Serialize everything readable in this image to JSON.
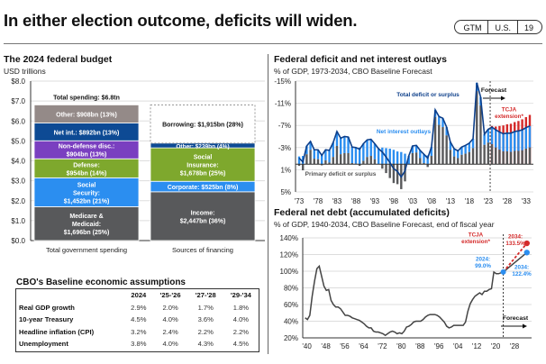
{
  "header": {
    "title": "In either election outcome, deficits will widen.",
    "badge": [
      "GTM",
      "U.S.",
      "19"
    ]
  },
  "budget": {
    "title": "The 2024 federal budget",
    "subtitle": "USD trillions",
    "total_label": "Total spending: $6.8tn",
    "chart_data": {
      "type": "bar",
      "stacked": true,
      "ylim": [
        0,
        8
      ],
      "yticks": [
        "$0.0",
        "$1.0",
        "$2.0",
        "$3.0",
        "$4.0",
        "$5.0",
        "$6.0",
        "$7.0",
        "$8.0"
      ],
      "categories": [
        "Total government spending",
        "Sources of financing"
      ],
      "spending": [
        {
          "name": "Medicare & Medicaid",
          "label": "Medicare &|Medicaid:|$1,696bn (25%)",
          "value": 1.696,
          "color": "#58595b"
        },
        {
          "name": "Social Security",
          "label": "Social|Security:|$1,452bn (21%)",
          "value": 1.452,
          "color": "#2b8ef0"
        },
        {
          "name": "Defense",
          "label": "Defense:|$954bn (14%)",
          "value": 0.954,
          "color": "#7ea82d"
        },
        {
          "name": "Non-defense disc.",
          "label": "Non-defense disc.:|$904bn (13%)",
          "value": 0.904,
          "color": "#7a3fc0"
        },
        {
          "name": "Net int.",
          "label": "Net int.: $892bn (13%)",
          "value": 0.892,
          "color": "#0d4a94"
        },
        {
          "name": "Other",
          "label": "Other: $908bn (13%)",
          "value": 0.908,
          "color": "#948a88"
        }
      ],
      "financing": [
        {
          "name": "Income",
          "label": "Income:|$2,447bn (36%)",
          "value": 2.447,
          "color": "#58595b"
        },
        {
          "name": "Corporate",
          "label": "Corporate: $525bn (8%)",
          "value": 0.525,
          "color": "#2b8ef0"
        },
        {
          "name": "Social Insurance",
          "label": "Social|Insurance:|$1,678bn (25%)",
          "value": 1.678,
          "color": "#7ea82d"
        },
        {
          "name": "Other",
          "label": "Other: $239bn (4%)",
          "value": 0.239,
          "color": "#0d4a94"
        },
        {
          "name": "Borrowing",
          "label": "Borrowing: $1,915bn (28%)",
          "value": 1.915,
          "color": "none"
        }
      ]
    }
  },
  "assumptions": {
    "title": "CBO's Baseline economic assumptions",
    "columns": [
      "",
      "2024",
      "'25-'26",
      "'27-'28",
      "'29-'34"
    ],
    "rows": [
      [
        "Real GDP growth",
        "2.9%",
        "2.0%",
        "1.7%",
        "1.8%"
      ],
      [
        "10-year Treasury",
        "4.5%",
        "4.0%",
        "3.6%",
        "4.0%"
      ],
      [
        "Headline inflation (CPI)",
        "3.2%",
        "2.4%",
        "2.2%",
        "2.2%"
      ],
      [
        "Unemployment",
        "3.8%",
        "4.0%",
        "4.3%",
        "4.5%"
      ]
    ]
  },
  "deficit": {
    "title": "Federal deficit and net interest outlays",
    "subtitle": "% of GDP, 1973-2034, CBO Baseline Forecast",
    "labels": {
      "total": "Total deficit or surplus",
      "interest": "Net interest outlays",
      "primary": "Primary deficit or surplus",
      "forecast": "Forecast",
      "tcja": "TCJA|extension*"
    },
    "chart_data": {
      "type": "bar",
      "title": "Federal deficit and net interest outlays",
      "ylim": [
        -15,
        5
      ],
      "yticks": [
        "-15%",
        "-11%",
        "-7%",
        "-3%",
        "1%",
        "5%"
      ],
      "ytick_values": [
        -15,
        -11,
        -7,
        -3,
        1,
        5
      ],
      "xticks": [
        "'73",
        "'78",
        "'83",
        "'88",
        "'93",
        "'98",
        "'03",
        "'08",
        "'13",
        "'18",
        "'23",
        "'28",
        "'33"
      ],
      "forecast_start": 2024,
      "years": [
        1973,
        1974,
        1975,
        1976,
        1977,
        1978,
        1979,
        1980,
        1981,
        1982,
        1983,
        1984,
        1985,
        1986,
        1987,
        1988,
        1989,
        1990,
        1991,
        1992,
        1993,
        1994,
        1995,
        1996,
        1997,
        1998,
        1999,
        2000,
        2001,
        2002,
        2003,
        2004,
        2005,
        2006,
        2007,
        2008,
        2009,
        2010,
        2011,
        2012,
        2013,
        2014,
        2015,
        2016,
        2017,
        2018,
        2019,
        2020,
        2021,
        2022,
        2023,
        2024,
        2025,
        2026,
        2027,
        2028,
        2029,
        2030,
        2031,
        2032,
        2033,
        2034
      ],
      "series": [
        {
          "name": "Total deficit or surplus",
          "color": "#0d3f8a",
          "values": [
            -1.1,
            -0.4,
            -3.3,
            -4.1,
            -2.6,
            -2.6,
            -1.6,
            -2.6,
            -2.5,
            -3.9,
            -5.9,
            -4.7,
            -5.0,
            -4.9,
            -3.1,
            -3.0,
            -2.7,
            -3.7,
            -4.4,
            -4.5,
            -3.7,
            -2.8,
            -2.2,
            -1.3,
            -0.3,
            0.8,
            1.3,
            2.3,
            1.2,
            -1.5,
            -3.3,
            -3.4,
            -2.5,
            -1.8,
            -1.1,
            -3.1,
            -9.8,
            -8.6,
            -8.3,
            -6.7,
            -4.0,
            -2.8,
            -2.4,
            -3.1,
            -3.4,
            -3.8,
            -4.6,
            -14.7,
            -12.1,
            -5.4,
            -6.3,
            -6.7,
            -6.2,
            -5.8,
            -5.5,
            -5.6,
            -5.6,
            -5.9,
            -6.0,
            -6.2,
            -6.6,
            -6.9
          ]
        },
        {
          "name": "Net interest outlays",
          "color": "#2b8ef0",
          "values": [
            1.4,
            1.5,
            1.5,
            1.5,
            1.6,
            1.7,
            1.8,
            1.9,
            2.2,
            2.6,
            2.6,
            2.9,
            3.0,
            2.9,
            2.9,
            2.9,
            3.0,
            3.1,
            3.1,
            3.0,
            2.8,
            2.8,
            3.0,
            2.9,
            2.8,
            2.6,
            2.3,
            2.2,
            1.9,
            1.5,
            1.3,
            1.3,
            1.4,
            1.6,
            1.6,
            1.6,
            1.3,
            1.5,
            1.6,
            1.5,
            1.4,
            1.4,
            1.3,
            1.4,
            1.5,
            1.6,
            1.7,
            1.5,
            1.5,
            1.9,
            2.4,
            3.1,
            3.2,
            3.2,
            3.2,
            3.3,
            3.4,
            3.5,
            3.6,
            3.7,
            3.8,
            3.9
          ]
        },
        {
          "name": "Primary deficit or surplus",
          "color": "#58595b",
          "values": [
            0.3,
            1.1,
            -1.8,
            -2.6,
            -1.0,
            -0.9,
            0.2,
            -0.7,
            -0.3,
            -1.3,
            -3.3,
            -1.8,
            -2.0,
            -2.0,
            -0.2,
            -0.1,
            0.3,
            -0.6,
            -1.3,
            -1.5,
            -0.9,
            0.0,
            0.8,
            1.6,
            2.5,
            3.4,
            3.6,
            4.5,
            3.1,
            0.0,
            -2.0,
            -2.1,
            -1.1,
            -0.2,
            0.5,
            -1.5,
            -8.5,
            -7.1,
            -6.7,
            -5.2,
            -2.6,
            -1.4,
            -1.1,
            -1.7,
            -1.9,
            -2.2,
            -2.9,
            -13.2,
            -10.6,
            -3.5,
            -3.9,
            -3.6,
            -3.0,
            -2.6,
            -2.3,
            -2.3,
            -2.2,
            -2.4,
            -2.4,
            -2.5,
            -2.8,
            -3.0
          ]
        },
        {
          "name": "TCJA extension*",
          "color": "#d42a2a",
          "values_from_2024": [
            -6.9,
            -6.8,
            -6.9,
            -7.0,
            -7.2,
            -7.3,
            -7.6,
            -7.8,
            -8.1,
            -8.5,
            -8.9
          ]
        }
      ]
    }
  },
  "debt": {
    "title": "Federal net debt (accumulated deficits)",
    "subtitle": "% of GDP, 1940-2034, CBO Baseline Forecast, end of fiscal year",
    "labels": {
      "tcja": "TCJA|extension*",
      "tcja_2034": "2034:|133.5%",
      "base_2024": "2024:|99.0%",
      "base_2034": "2034:|122.4%",
      "forecast": "Forecast"
    },
    "chart_data": {
      "type": "line",
      "title": "Federal net debt (accumulated deficits)",
      "ylim": [
        20,
        140
      ],
      "yticks": [
        "20%",
        "40%",
        "60%",
        "80%",
        "100%",
        "120%",
        "140%"
      ],
      "ytick_values": [
        20,
        40,
        60,
        80,
        100,
        120,
        140
      ],
      "xticks": [
        "'40",
        "'48",
        "'56",
        "'64",
        "'72",
        "'80",
        "'88",
        "'96",
        "'04",
        "'12",
        "'20",
        "'28"
      ],
      "xtick_values": [
        1940,
        1948,
        1956,
        1964,
        1972,
        1980,
        1988,
        1996,
        2004,
        2012,
        2020,
        2028
      ],
      "xlim": [
        1939,
        2036
      ],
      "forecast_start": 2024,
      "series": [
        {
          "name": "Historical net debt",
          "color": "#444444",
          "x": [
            1940,
            1941,
            1942,
            1943,
            1944,
            1945,
            1946,
            1947,
            1948,
            1949,
            1950,
            1951,
            1952,
            1953,
            1954,
            1955,
            1956,
            1957,
            1958,
            1959,
            1960,
            1961,
            1962,
            1963,
            1964,
            1965,
            1966,
            1967,
            1968,
            1969,
            1970,
            1971,
            1972,
            1973,
            1974,
            1975,
            1976,
            1977,
            1978,
            1979,
            1980,
            1981,
            1982,
            1983,
            1984,
            1985,
            1986,
            1987,
            1988,
            1989,
            1990,
            1991,
            1992,
            1993,
            1994,
            1995,
            1996,
            1997,
            1998,
            1999,
            2000,
            2001,
            2002,
            2003,
            2004,
            2005,
            2006,
            2007,
            2008,
            2009,
            2010,
            2011,
            2012,
            2013,
            2014,
            2015,
            2016,
            2017,
            2018,
            2019,
            2020,
            2021,
            2022,
            2023,
            2024
          ],
          "y": [
            44,
            42,
            47,
            70,
            88,
            103,
            106,
            94,
            82,
            77,
            78,
            65,
            60,
            57,
            57,
            55,
            51,
            47,
            47,
            46,
            44,
            43,
            42,
            41,
            39,
            37,
            34,
            32,
            32,
            28,
            27,
            27,
            26,
            25,
            23,
            25,
            27,
            28,
            27,
            25,
            26,
            25,
            28,
            33,
            34,
            36,
            39,
            40,
            40,
            40,
            42,
            45,
            47,
            48,
            48,
            48,
            47,
            45,
            42,
            39,
            34,
            32,
            33,
            35,
            35,
            35,
            35,
            35,
            39,
            52,
            61,
            66,
            70,
            72,
            74,
            72,
            76,
            76,
            78,
            79,
            99,
            97,
            97,
            98,
            99
          ]
        },
        {
          "name": "CBO baseline forecast",
          "color": "#2b8ef0",
          "x": [
            2024,
            2034
          ],
          "y": [
            99.0,
            122.4
          ]
        },
        {
          "name": "TCJA extension*",
          "color": "#d42a2a",
          "x": [
            2024,
            2034
          ],
          "y": [
            99.0,
            133.5
          ]
        }
      ]
    }
  }
}
